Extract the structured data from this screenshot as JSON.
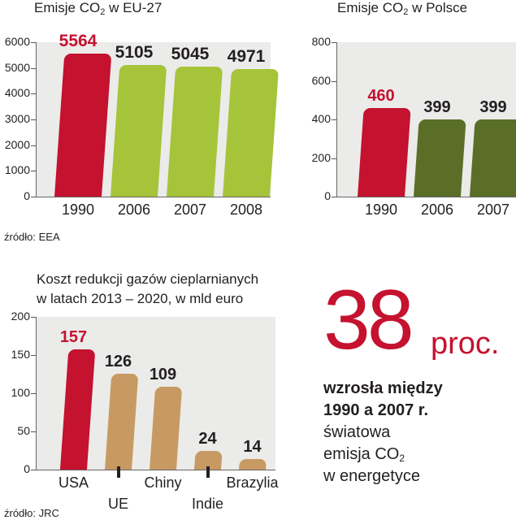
{
  "eu_chart": {
    "title_pre": "Emisje CO",
    "title_sub": "2",
    "title_post": " w EU-27",
    "source": "źródło: EEA"
  },
  "pl_chart": {
    "title_pre": "Emisje CO",
    "title_sub": "2",
    "title_post": " w Polsce"
  },
  "cost_chart": {
    "title_line1": "Koszt redukcji gazów cieplarnianych",
    "title_line2": "w latach 2013 – 2020, w mld euro",
    "source": "źródło: JRC"
  },
  "callout": {
    "big_number": "38",
    "unit": "proc.",
    "line1": "wzrosła między",
    "line2": "1990 a 2007 r.",
    "line3": "światowa",
    "line4_pre": "emisja CO",
    "line4_sub": "2",
    "line5": "w energetyce"
  },
  "colors": {
    "highlight": "#c4122f",
    "eu_bar": "#a6c43a",
    "pl_bar": "#5a6e28",
    "cost_bar": "#c89a63",
    "plot_bg": "#ebebea"
  },
  "chart_data": [
    {
      "type": "bar",
      "title": "Emisje CO2 w EU-27",
      "categories": [
        "1990",
        "2006",
        "2007",
        "2008"
      ],
      "values": [
        5564,
        5105,
        5045,
        4971
      ],
      "ylim": [
        0,
        6000
      ],
      "yticks": [
        0,
        1000,
        2000,
        3000,
        4000,
        5000,
        6000
      ],
      "highlight_index": 0
    },
    {
      "type": "bar",
      "title": "Emisje CO2 w Polsce",
      "categories": [
        "1990",
        "2006",
        "2007"
      ],
      "values": [
        460,
        399,
        399
      ],
      "ylim": [
        0,
        800
      ],
      "yticks": [
        0,
        200,
        400,
        600,
        800
      ],
      "highlight_index": 0
    },
    {
      "type": "bar",
      "title": "Koszt redukcji gazów cieplarnianych w latach 2013 – 2020, w mld euro",
      "categories": [
        "USA",
        "UE",
        "Chiny",
        "Indie",
        "Brazylia"
      ],
      "values": [
        157,
        126,
        109,
        24,
        14
      ],
      "ylim": [
        0,
        200
      ],
      "yticks": [
        0,
        50,
        100,
        150,
        200
      ],
      "highlight_index": 0
    }
  ]
}
